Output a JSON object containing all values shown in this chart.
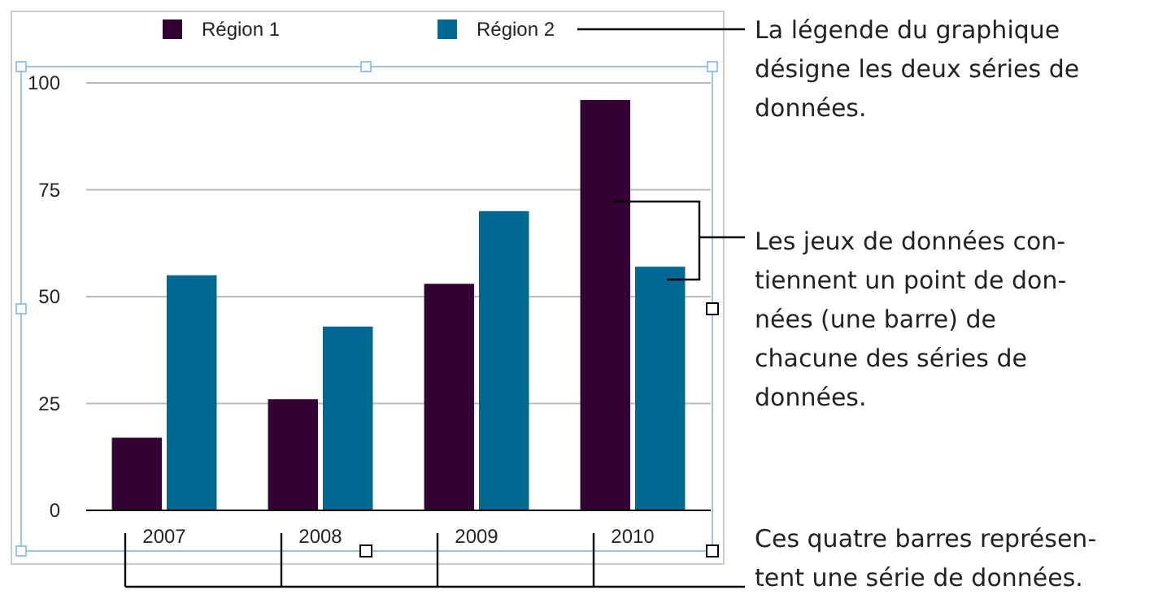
{
  "chart_data": {
    "type": "bar",
    "categories": [
      "2007",
      "2008",
      "2009",
      "2010"
    ],
    "series": [
      {
        "name": "Région 1",
        "color": "#350033",
        "values": [
          17,
          26,
          53,
          96
        ]
      },
      {
        "name": "Région 2",
        "color": "#006894",
        "values": [
          55,
          43,
          70,
          57
        ]
      }
    ],
    "ylim": [
      0,
      100
    ],
    "yticks": [
      0,
      25,
      50,
      75,
      100
    ],
    "grid": "y",
    "legend": "top",
    "annotations": [
      "La légende du graphique\ndésigne les deux séries de\ndonnées.",
      "Les jeux de données con-\ntiennent un point de don-\nnées (une barre) de\nchacune des séries de\ndonnées.",
      "Ces quatre barres représen-\ntent une série de données."
    ]
  }
}
